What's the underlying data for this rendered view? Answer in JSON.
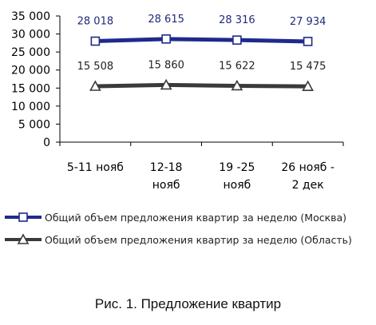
{
  "chart_data": {
    "type": "line",
    "categories": [
      [
        "5-11 нояб"
      ],
      [
        "12-18",
        "нояб"
      ],
      [
        "19 -25",
        "нояб"
      ],
      [
        "26 нояб -",
        "2 дек"
      ]
    ],
    "y_ticks": [
      "0",
      "5 000",
      "10 000",
      "15 000",
      "20 000",
      "25 000",
      "30 000",
      "35 000"
    ],
    "ylim": [
      0,
      35000
    ],
    "y_tick_step": 5000,
    "grid": false,
    "legend_position": "bottom",
    "series": [
      {
        "name": "Общий объем предложения квартир за неделю (Москва)",
        "values": [
          28018,
          28615,
          28316,
          27934
        ],
        "labels": [
          "28 018",
          "28 615",
          "28 316",
          "27 934"
        ],
        "color": "#1F2A8C",
        "marker": "square"
      },
      {
        "name": "Общий объем предложения квартир за неделю (Область)",
        "values": [
          15508,
          15860,
          15622,
          15475
        ],
        "labels": [
          "15 508",
          "15 860",
          "15 622",
          "15 475"
        ],
        "color": "#3A3A3A",
        "marker": "triangle"
      }
    ]
  },
  "caption": "Рис. 1. Предложение квартир"
}
